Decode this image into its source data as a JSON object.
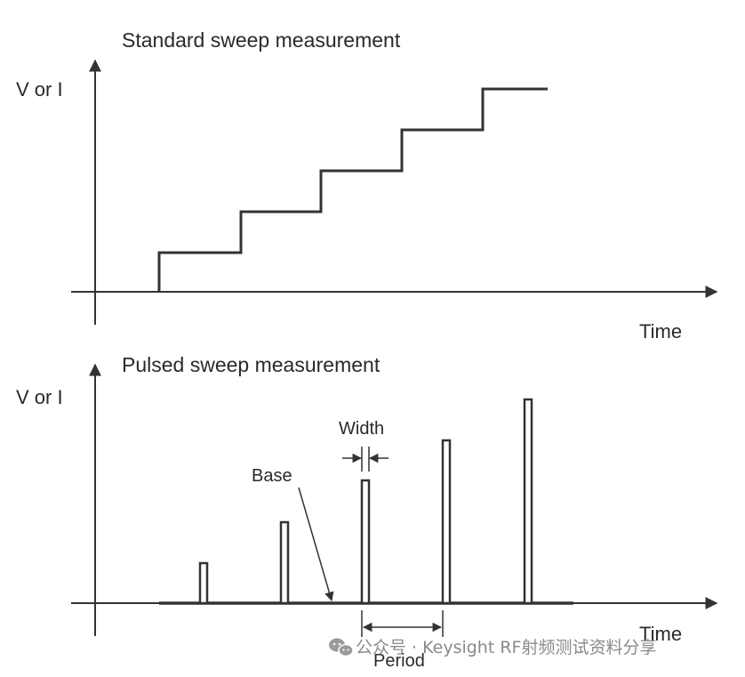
{
  "top_panel": {
    "title": "Standard sweep measurement",
    "y_label": "V or I",
    "x_label": "Time"
  },
  "bottom_panel": {
    "title": "Pulsed sweep measurement",
    "y_label": "V or I",
    "x_label": "Time",
    "annotations": {
      "width": "Width",
      "base": "Base",
      "period": "Period"
    }
  },
  "watermark": {
    "text": "公众号 · Keysight RF射频测试资料分享",
    "icon": "wechat-icon"
  },
  "colors": {
    "line": "#333333",
    "text": "#2a2a2a",
    "watermark": "#8a8a8a"
  }
}
